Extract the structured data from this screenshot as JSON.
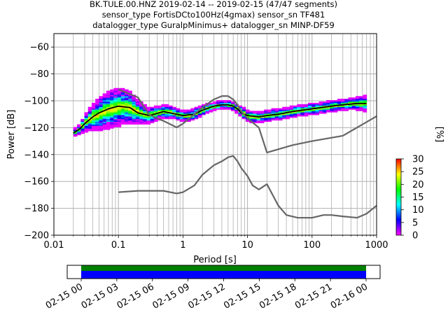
{
  "figure": {
    "title_lines": [
      "BK.TULE.00.HNZ   2019-02-14 -- 2019-02-15  (47/47 segments)",
      "sensor_type FortisDCto100Hz(4gmax) sensor_sn TF481",
      "datalogger_type GuralpMinimus+ datalogger_sn MINP-DF59"
    ]
  },
  "chart_data": [
    {
      "type": "heatmap",
      "subtype": "ppsd",
      "xlabel": "Period [s]",
      "ylabel": "Power [dB]",
      "xscale": "log",
      "xlim": [
        0.01,
        1000
      ],
      "ylim": [
        -200,
        -50
      ],
      "x_ticks": [
        0.01,
        0.1,
        1,
        10,
        100,
        1000
      ],
      "x_tick_labels": [
        "0.01",
        "0.1",
        "1",
        "10",
        "100",
        "1000"
      ],
      "y_ticks": [
        -200,
        -180,
        -160,
        -140,
        -120,
        -100,
        -80,
        -60
      ],
      "y_tick_labels": [
        "−200",
        "−180",
        "−160",
        "−140",
        "−120",
        "−100",
        "−80",
        "−60"
      ],
      "grid": true,
      "colorbar": {
        "label": "[%]",
        "range": [
          0,
          30
        ],
        "ticks": [
          0,
          5,
          10,
          15,
          20,
          25,
          30
        ],
        "tick_labels": [
          "0",
          "5",
          "10",
          "15",
          "20",
          "25",
          "30"
        ],
        "colormap": [
          "#ffffff",
          "#ff00ff",
          "#0000ff",
          "#00ffff",
          "#00ff00",
          "#ffff00",
          "#ff0000"
        ]
      },
      "density_band": {
        "period": [
          0.02,
          0.022,
          0.025,
          0.03,
          0.035,
          0.04,
          0.05,
          0.06,
          0.07,
          0.08,
          0.1,
          0.12,
          0.15,
          0.2,
          0.25,
          0.3,
          0.4,
          0.5,
          0.6,
          0.7,
          0.8,
          1.0,
          1.2,
          1.5,
          2.0,
          2.5,
          3.0,
          4.0,
          5.0,
          6.0,
          7.0,
          8.0,
          10,
          12,
          15,
          20,
          30,
          40,
          50,
          70,
          100,
          150,
          200,
          300,
          400,
          500,
          700
        ],
        "mean_db": [
          -124,
          -123,
          -121,
          -117,
          -114,
          -112,
          -110,
          -108,
          -107,
          -106,
          -105,
          -104,
          -105,
          -108,
          -110,
          -111,
          -109,
          -108,
          -108,
          -109,
          -110,
          -111,
          -111,
          -110,
          -107,
          -105,
          -104,
          -103,
          -103,
          -104,
          -106,
          -108,
          -111,
          -112,
          -112,
          -111,
          -110,
          -109,
          -108,
          -107,
          -106,
          -105,
          -104,
          -103,
          -102,
          -102,
          -102
        ],
        "spread_db": [
          3,
          3,
          4,
          6,
          8,
          10,
          12,
          13,
          14,
          14,
          14,
          13,
          12,
          9,
          7,
          6,
          5,
          5,
          5,
          4,
          4,
          4,
          4,
          4,
          4,
          3,
          3,
          3,
          3,
          3,
          3,
          4,
          4,
          4,
          4,
          4,
          4,
          4,
          4,
          4,
          4,
          4,
          4,
          4,
          4,
          5,
          6
        ]
      },
      "series": [
        {
          "color": "#000000",
          "x": [
            0.02,
            0.025,
            0.03,
            0.04,
            0.05,
            0.07,
            0.1,
            0.15,
            0.2,
            0.3,
            0.5,
            0.8,
            1.0,
            1.5,
            2.0,
            3.0,
            4.0,
            5.0,
            6.0,
            7.0,
            8.0,
            10,
            15,
            20,
            30,
            50,
            70,
            100,
            200,
            300,
            500,
            700
          ],
          "y": [
            -124,
            -121,
            -117,
            -112,
            -109,
            -106,
            -104,
            -105,
            -109,
            -111,
            -108,
            -110,
            -111,
            -110,
            -107,
            -104,
            -103,
            -103,
            -104,
            -106,
            -109,
            -111,
            -112,
            -111,
            -110,
            -108,
            -107,
            -106,
            -104,
            -103,
            -102,
            -102
          ]
        },
        {
          "color": "#666666",
          "x": [
            0.1,
            0.2,
            0.3,
            0.5,
            0.8,
            1.0,
            1.5,
            2.0,
            3.0,
            4.0,
            5.0,
            6.0,
            7.0,
            8.0,
            10,
            15,
            20,
            50,
            100,
            300,
            1000
          ],
          "y": [
            -91.5,
            -97.4,
            -110.5,
            -115,
            -119.8,
            -117,
            -110,
            -105,
            -99,
            -96.5,
            -96.5,
            -99,
            -103,
            -108,
            -113,
            -120,
            -138.5,
            -133,
            -130,
            -126,
            -111.5
          ]
        },
        {
          "color": "#666666",
          "x": [
            0.1,
            0.2,
            0.3,
            0.5,
            0.8,
            1.0,
            1.5,
            2.0,
            3.0,
            4.0,
            5.0,
            6.0,
            7.0,
            8.0,
            10,
            12,
            15,
            20,
            30,
            40,
            60,
            80,
            100,
            150,
            200,
            300,
            500,
            700,
            1000
          ],
          "y": [
            -168,
            -167,
            -167,
            -167,
            -169,
            -168,
            -163,
            -155,
            -148,
            -145,
            -142,
            -141,
            -145,
            -150,
            -156,
            -163,
            -166,
            -162,
            -178,
            -185,
            -187,
            -187,
            -187,
            -185,
            -185,
            -186,
            -187,
            -184,
            -178
          ]
        }
      ]
    },
    {
      "type": "bar",
      "subtype": "time-coverage",
      "x_tick_labels": [
        "02-15 00",
        "02-15 03",
        "02-15 06",
        "02-15 09",
        "02-15 12",
        "02-15 15",
        "02-15 18",
        "02-15 21",
        "02-16 00"
      ],
      "coverage": [
        {
          "start": "02-15 00",
          "end": "02-16 00",
          "color": "#008000"
        },
        {
          "start": "02-15 00",
          "end": "02-16 00",
          "color": "#0000ff"
        }
      ]
    }
  ]
}
